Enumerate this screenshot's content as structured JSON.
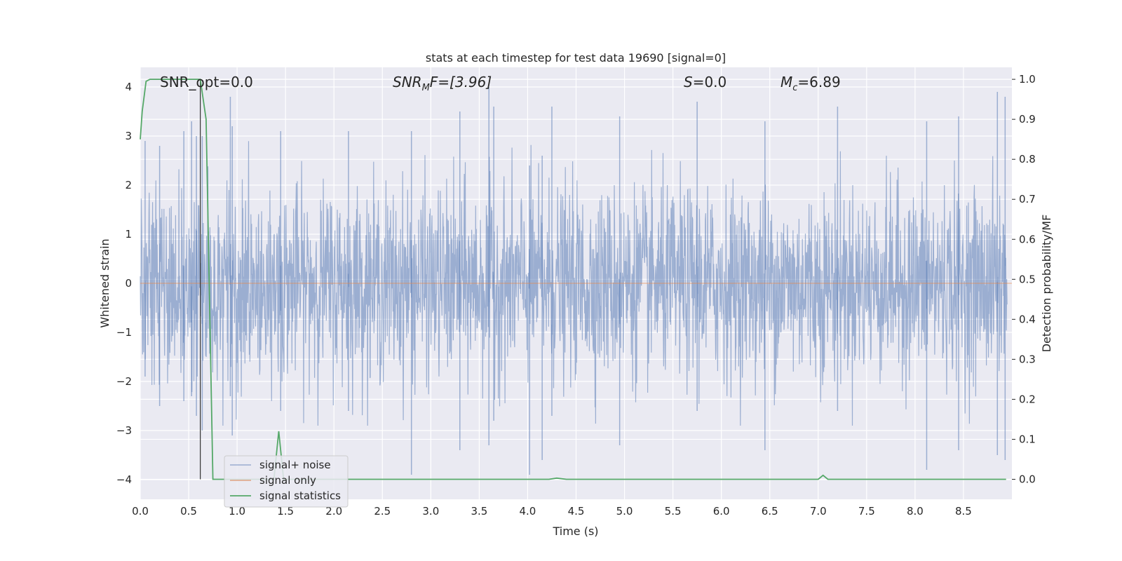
{
  "chart_data": {
    "type": "line",
    "title": "stats at each timestep for test data 19690 [signal=0]",
    "xlabel": "Time (s)",
    "ylabel_left": "Whitened strain",
    "ylabel_right": "Detection probability/MF",
    "xlim": [
      0,
      9.0
    ],
    "ylim_left": [
      -4.4,
      4.4
    ],
    "ylim_right": [
      -0.05,
      1.03
    ],
    "x_ticks": [
      "0.0",
      "0.5",
      "1.0",
      "1.5",
      "2.0",
      "2.5",
      "3.0",
      "3.5",
      "4.0",
      "4.5",
      "5.0",
      "5.5",
      "6.0",
      "6.5",
      "7.0",
      "7.5",
      "8.0",
      "8.5"
    ],
    "y_ticks_left": [
      "−4",
      "−3",
      "−2",
      "−1",
      "0",
      "1",
      "2",
      "3",
      "4"
    ],
    "y_ticks_right": [
      "0.0",
      "0.1",
      "0.2",
      "0.3",
      "0.4",
      "0.5",
      "0.6",
      "0.7",
      "0.8",
      "0.9",
      "1.0"
    ],
    "grid": true,
    "legend_position": "lower-left",
    "annotations": {
      "snr_opt": "SNR_opt=0.0",
      "snr_mf_name": "SNR",
      "snr_mf_sub": "M",
      "snr_mf_rest": "F=[3.96]",
      "s_name": "S",
      "s_rest": "=0.0",
      "mc_name": "M",
      "mc_sub": "c",
      "mc_rest": "=6.89"
    },
    "vertical_marker_x": 0.62,
    "series": [
      {
        "name": "signal+ noise",
        "color": "#4c72b0",
        "axis": "left",
        "description_note": "dense whitened noise, roughly |y| < 4 across 0–9 s",
        "peaks": [
          {
            "x": 0.05,
            "hi": 2.9,
            "lo": -1.9
          },
          {
            "x": 0.2,
            "hi": 2.8,
            "lo": -2.5
          },
          {
            "x": 0.45,
            "hi": 3.1,
            "lo": -2.4
          },
          {
            "x": 0.53,
            "hi": 3.3,
            "lo": -2.3
          },
          {
            "x": 0.58,
            "hi": 3.0,
            "lo": -2.7
          },
          {
            "x": 0.64,
            "hi": 3.0,
            "lo": -3.0
          },
          {
            "x": 0.93,
            "hi": 3.8,
            "lo": -2.3
          },
          {
            "x": 0.95,
            "hi": 3.2,
            "lo": -3.1
          },
          {
            "x": 1.45,
            "hi": 3.1,
            "lo": -2.6
          },
          {
            "x": 2.15,
            "hi": 3.1,
            "lo": -2.6
          },
          {
            "x": 2.8,
            "hi": 3.1,
            "lo": -3.9
          },
          {
            "x": 3.3,
            "hi": 3.5,
            "lo": -3.4
          },
          {
            "x": 3.6,
            "hi": 4.0,
            "lo": -3.3
          },
          {
            "x": 3.65,
            "hi": 3.6,
            "lo": -2.8
          },
          {
            "x": 4.02,
            "hi": 2.4,
            "lo": -3.9
          },
          {
            "x": 4.15,
            "hi": 2.6,
            "lo": -3.6
          },
          {
            "x": 4.25,
            "hi": 3.6,
            "lo": -2.7
          },
          {
            "x": 4.95,
            "hi": 3.4,
            "lo": -3.3
          },
          {
            "x": 5.75,
            "hi": 3.7,
            "lo": -2.6
          },
          {
            "x": 6.45,
            "hi": 3.3,
            "lo": -3.4
          },
          {
            "x": 7.2,
            "hi": 3.6,
            "lo": -2.6
          },
          {
            "x": 8.12,
            "hi": 3.3,
            "lo": -3.8
          },
          {
            "x": 8.45,
            "hi": 3.4,
            "lo": -3.4
          },
          {
            "x": 8.85,
            "hi": 3.9,
            "lo": -3.5
          },
          {
            "x": 8.93,
            "hi": 3.8,
            "lo": -3.6
          }
        ]
      },
      {
        "name": "signal only",
        "color": "#dd8452",
        "axis": "left",
        "x": [
          0,
          9.0
        ],
        "y": [
          0,
          0
        ]
      },
      {
        "name": "signal statistics",
        "color": "#55a868",
        "axis": "right",
        "x": [
          0.0,
          0.02,
          0.06,
          0.1,
          0.2,
          0.3,
          0.4,
          0.5,
          0.55,
          0.6,
          0.62,
          0.68,
          0.75,
          0.8,
          1.0,
          1.2,
          1.38,
          1.43,
          1.48,
          1.55,
          2.0,
          3.0,
          4.0,
          4.22,
          4.3,
          4.4,
          4.5,
          5.0,
          6.0,
          6.9,
          7.0,
          7.05,
          7.1,
          7.15,
          7.2,
          8.0,
          8.94
        ],
        "y": [
          0.85,
          0.92,
          0.995,
          1.0,
          1.0,
          1.0,
          1.0,
          1.0,
          1.0,
          1.0,
          1.0,
          0.9,
          0.0,
          0.0,
          0.0,
          0.0,
          0.0,
          0.12,
          0.0,
          0.0,
          0.0,
          0.0,
          0.0,
          0.0,
          0.003,
          0.0,
          0.0,
          0.0,
          0.0,
          0.0,
          0.0,
          0.01,
          0.0,
          0.0,
          0.0,
          0.0,
          0.0
        ]
      }
    ]
  }
}
